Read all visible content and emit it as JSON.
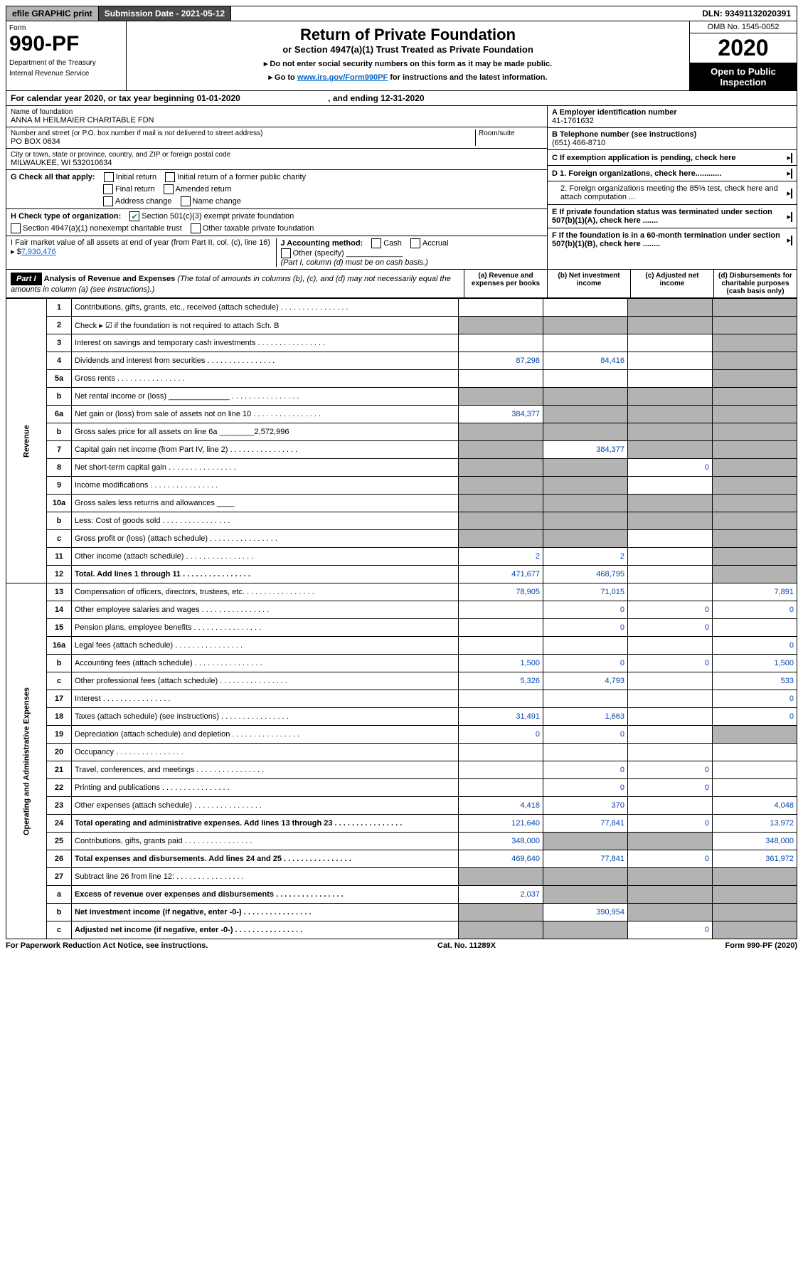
{
  "topbar": {
    "efile": "efile GRAPHIC print",
    "subdate": "Submission Date - 2021-05-12",
    "dln": "DLN: 93491132020391"
  },
  "hdr": {
    "form": "Form",
    "fno": "990-PF",
    "dept": "Department of the Treasury",
    "irs": "Internal Revenue Service",
    "title": "Return of Private Foundation",
    "sub": "or Section 4947(a)(1) Trust Treated as Private Foundation",
    "note1": "▸ Do not enter social security numbers on this form as it may be made public.",
    "note2": "▸ Go to ",
    "link": "www.irs.gov/Form990PF",
    "note2b": " for instructions and the latest information.",
    "omb": "OMB No. 1545-0052",
    "yr": "2020",
    "open": "Open to Public Inspection"
  },
  "yearline": {
    "a": "For calendar year 2020, or tax year beginning 01-01-2020",
    "b": ", and ending 12-31-2020"
  },
  "info": {
    "nameLabel": "Name of foundation",
    "name": "ANNA M HEILMAIER CHARITABLE FDN",
    "addrLabel": "Number and street (or P.O. box number if mail is not delivered to street address)",
    "room": "Room/suite",
    "addr": "PO BOX 0634",
    "cityLabel": "City or town, state or province, country, and ZIP or foreign postal code",
    "city": "MILWAUKEE, WI  532010634",
    "G": "G Check all that apply:",
    "g1": "Initial return",
    "g2": "Initial return of a former public charity",
    "g3": "Final return",
    "g4": "Amended return",
    "g5": "Address change",
    "g6": "Name change",
    "H": "H Check type of organization:",
    "h1": "Section 501(c)(3) exempt private foundation",
    "h2": "Section 4947(a)(1) nonexempt charitable trust",
    "h3": "Other taxable private foundation",
    "I": "I Fair market value of all assets at end of year (from Part II, col. (c), line 16) ▸ $",
    "Ival": "7,930,476",
    "J": "J Accounting method:",
    "j1": "Cash",
    "j2": "Accrual",
    "j3": "Other (specify)",
    "Jnote": "(Part I, column (d) must be on cash basis.)",
    "A": "A Employer identification number",
    "Aval": "41-1761632",
    "B": "B Telephone number (see instructions)",
    "Bval": "(651) 466-8710",
    "C": "C If exemption application is pending, check here",
    "D1": "D 1. Foreign organizations, check here............",
    "D2": "2. Foreign organizations meeting the 85% test, check here and attach computation ...",
    "E": "E  If private foundation status was terminated under section 507(b)(1)(A), check here .......",
    "F": "F  If the foundation is in a 60-month termination under section 507(b)(1)(B), check here ........"
  },
  "part1": {
    "label": "Part I",
    "heading": "Analysis of Revenue and Expenses",
    "note": "(The total of amounts in columns (b), (c), and (d) may not necessarily equal the amounts in column (a) (see instructions).)",
    "colA": "(a)   Revenue and expenses per books",
    "colB": "(b)  Net investment income",
    "colC": "(c)  Adjusted net income",
    "colD": "(d)  Disbursements for charitable purposes (cash basis only)"
  },
  "sections": {
    "rev": "Revenue",
    "op": "Operating and Administrative Expenses"
  },
  "rows": [
    {
      "n": "1",
      "t": "Contributions, gifts, grants, etc., received (attach schedule)",
      "a": "",
      "b": "",
      "c": "s",
      "d": "s"
    },
    {
      "n": "2",
      "t": "Check ▸ ☑ if the foundation is not required to attach Sch. B",
      "a": "s",
      "b": "s",
      "c": "s",
      "d": "s",
      "dots": 0
    },
    {
      "n": "3",
      "t": "Interest on savings and temporary cash investments",
      "a": "",
      "b": "",
      "c": "",
      "d": "s"
    },
    {
      "n": "4",
      "t": "Dividends and interest from securities",
      "a": "87,298",
      "b": "84,416",
      "c": "",
      "d": "s"
    },
    {
      "n": "5a",
      "t": "Gross rents",
      "a": "",
      "b": "",
      "c": "",
      "d": "s"
    },
    {
      "n": "b",
      "t": "Net rental income or (loss) ______________",
      "a": "s",
      "b": "s",
      "c": "s",
      "d": "s"
    },
    {
      "n": "6a",
      "t": "Net gain or (loss) from sale of assets not on line 10",
      "a": "384,377",
      "b": "s",
      "c": "s",
      "d": "s"
    },
    {
      "n": "b",
      "t": "Gross sales price for all assets on line 6a ________2,572,996",
      "a": "s",
      "b": "s",
      "c": "s",
      "d": "s",
      "dots": 0
    },
    {
      "n": "7",
      "t": "Capital gain net income (from Part IV, line 2)",
      "a": "s",
      "b": "384,377",
      "c": "s",
      "d": "s"
    },
    {
      "n": "8",
      "t": "Net short-term capital gain",
      "a": "s",
      "b": "s",
      "c": "0",
      "d": "s"
    },
    {
      "n": "9",
      "t": "Income modifications",
      "a": "s",
      "b": "s",
      "c": "",
      "d": "s"
    },
    {
      "n": "10a",
      "t": "Gross sales less returns and allowances  ____",
      "a": "s",
      "b": "s",
      "c": "s",
      "d": "s",
      "dots": 0
    },
    {
      "n": "b",
      "t": "Less: Cost of goods sold",
      "a": "s",
      "b": "s",
      "c": "s",
      "d": "s"
    },
    {
      "n": "c",
      "t": "Gross profit or (loss) (attach schedule)",
      "a": "s",
      "b": "s",
      "c": "",
      "d": "s"
    },
    {
      "n": "11",
      "t": "Other income (attach schedule)",
      "a": "2",
      "b": "2",
      "c": "",
      "d": "s"
    },
    {
      "n": "12",
      "t": "Total. Add lines 1 through 11",
      "a": "471,677",
      "b": "468,795",
      "c": "",
      "d": "s",
      "bold": 1
    },
    {
      "n": "13",
      "t": "Compensation of officers, directors, trustees, etc.",
      "a": "78,905",
      "b": "71,015",
      "c": "",
      "d": "7,891"
    },
    {
      "n": "14",
      "t": "Other employee salaries and wages",
      "a": "",
      "b": "0",
      "c": "0",
      "d": "0"
    },
    {
      "n": "15",
      "t": "Pension plans, employee benefits",
      "a": "",
      "b": "0",
      "c": "0",
      "d": ""
    },
    {
      "n": "16a",
      "t": "Legal fees (attach schedule)",
      "a": "",
      "b": "",
      "c": "",
      "d": "0"
    },
    {
      "n": "b",
      "t": "Accounting fees (attach schedule)",
      "a": "1,500",
      "b": "0",
      "c": "0",
      "d": "1,500"
    },
    {
      "n": "c",
      "t": "Other professional fees (attach schedule)",
      "a": "5,326",
      "b": "4,793",
      "c": "",
      "d": "533"
    },
    {
      "n": "17",
      "t": "Interest",
      "a": "",
      "b": "",
      "c": "",
      "d": "0"
    },
    {
      "n": "18",
      "t": "Taxes (attach schedule) (see instructions)",
      "a": "31,491",
      "b": "1,663",
      "c": "",
      "d": "0"
    },
    {
      "n": "19",
      "t": "Depreciation (attach schedule) and depletion",
      "a": "0",
      "b": "0",
      "c": "",
      "d": "s"
    },
    {
      "n": "20",
      "t": "Occupancy",
      "a": "",
      "b": "",
      "c": "",
      "d": ""
    },
    {
      "n": "21",
      "t": "Travel, conferences, and meetings",
      "a": "",
      "b": "0",
      "c": "0",
      "d": ""
    },
    {
      "n": "22",
      "t": "Printing and publications",
      "a": "",
      "b": "0",
      "c": "0",
      "d": ""
    },
    {
      "n": "23",
      "t": "Other expenses (attach schedule)",
      "a": "4,418",
      "b": "370",
      "c": "",
      "d": "4,048"
    },
    {
      "n": "24",
      "t": "Total operating and administrative expenses. Add lines 13 through 23",
      "a": "121,640",
      "b": "77,841",
      "c": "0",
      "d": "13,972",
      "bold": 1
    },
    {
      "n": "25",
      "t": "Contributions, gifts, grants paid",
      "a": "348,000",
      "b": "s",
      "c": "s",
      "d": "348,000"
    },
    {
      "n": "26",
      "t": "Total expenses and disbursements. Add lines 24 and 25",
      "a": "469,640",
      "b": "77,841",
      "c": "0",
      "d": "361,972",
      "bold": 1
    },
    {
      "n": "27",
      "t": "Subtract line 26 from line 12:",
      "a": "s",
      "b": "s",
      "c": "s",
      "d": "s"
    },
    {
      "n": "a",
      "t": "Excess of revenue over expenses and disbursements",
      "a": "2,037",
      "b": "s",
      "c": "s",
      "d": "s",
      "bold": 1
    },
    {
      "n": "b",
      "t": "Net investment income (if negative, enter -0-)",
      "a": "s",
      "b": "390,954",
      "c": "s",
      "d": "s",
      "bold": 1
    },
    {
      "n": "c",
      "t": "Adjusted net income (if negative, enter -0-)",
      "a": "s",
      "b": "s",
      "c": "0",
      "d": "s",
      "bold": 1
    }
  ],
  "footer": {
    "l": "For Paperwork Reduction Act Notice, see instructions.",
    "m": "Cat. No. 11289X",
    "r": "Form 990-PF (2020)"
  }
}
